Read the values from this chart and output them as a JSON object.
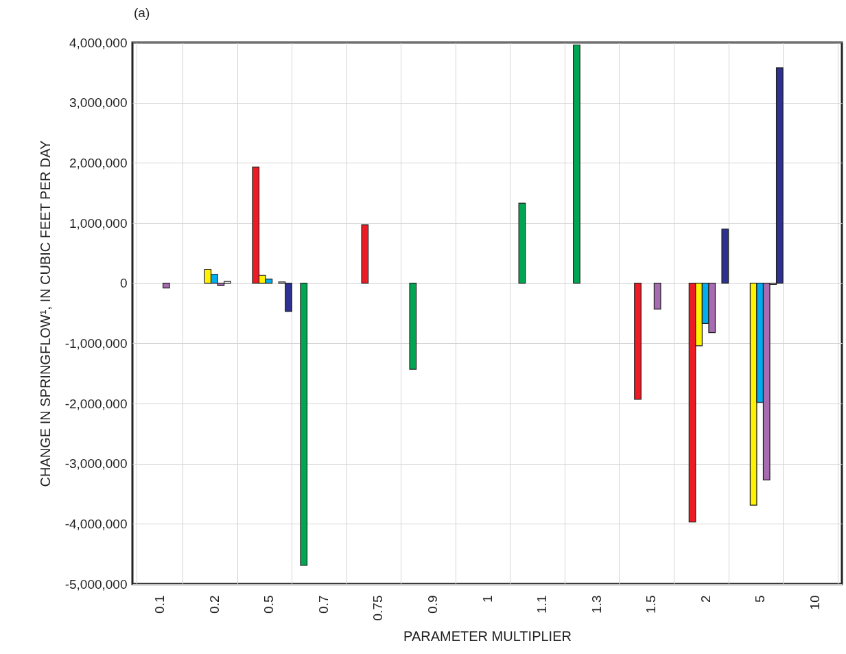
{
  "chart_data": {
    "type": "bar",
    "title": "(a)",
    "xlabel": "PARAMETER MULTIPLIER",
    "ylabel": "CHANGE IN SPRINGFLOW¹, IN CUBIC FEET PER DAY",
    "categories": [
      "0.1",
      "0.2",
      "0.5",
      "0.7",
      "0.75",
      "0.9",
      "1",
      "1.1",
      "1.3",
      "1.5",
      "2",
      "5",
      "10"
    ],
    "series": [
      {
        "color": "#00a651",
        "values": [
          null,
          null,
          null,
          -4690000,
          null,
          -1430000,
          null,
          1330000,
          3960000,
          null,
          null,
          null,
          null
        ]
      },
      {
        "color": "#ed1c24",
        "values": [
          null,
          null,
          1930000,
          null,
          970000,
          null,
          null,
          null,
          null,
          -1930000,
          -3970000,
          null,
          null
        ]
      },
      {
        "color": "#fff200",
        "values": [
          null,
          230000,
          130000,
          null,
          null,
          null,
          null,
          null,
          null,
          null,
          -1040000,
          -3690000,
          null
        ]
      },
      {
        "color": "#00aeef",
        "values": [
          null,
          150000,
          70000,
          null,
          null,
          null,
          null,
          null,
          null,
          null,
          -670000,
          -1980000,
          null
        ]
      },
      {
        "color": "#a66bb0",
        "values": [
          -80000,
          -40000,
          null,
          null,
          null,
          null,
          null,
          null,
          null,
          -430000,
          -820000,
          -3270000,
          null
        ]
      },
      {
        "color": "#ffffff",
        "values": [
          null,
          30000,
          20000,
          null,
          null,
          null,
          null,
          null,
          null,
          null,
          null,
          -20000,
          null
        ]
      },
      {
        "color": "#2e3192",
        "values": [
          null,
          null,
          -470000,
          null,
          null,
          null,
          null,
          null,
          null,
          null,
          900000,
          3580000,
          null
        ]
      }
    ],
    "ylim": [
      -5000000,
      4000000
    ],
    "yticks": [
      {
        "value": -5000000,
        "label": "-5,000,000"
      },
      {
        "value": -4000000,
        "label": "-4,000,000"
      },
      {
        "value": -3000000,
        "label": "-3,000,000"
      },
      {
        "value": -2000000,
        "label": "-2,000,000"
      },
      {
        "value": -1000000,
        "label": "-1,000,000"
      },
      0,
      {
        "value": 1000000,
        "label": "1,000,000"
      },
      {
        "value": 2000000,
        "label": "2,000,000"
      },
      {
        "value": 3000000,
        "label": "3,000,000"
      },
      {
        "value": 4000000,
        "label": "4,000,000"
      }
    ],
    "grid": true
  }
}
